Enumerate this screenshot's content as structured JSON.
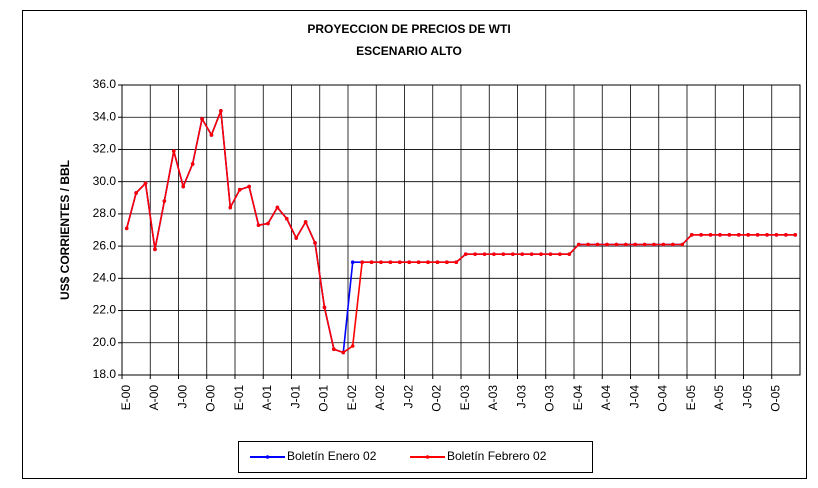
{
  "chart_data": {
    "type": "line",
    "title": "PROYECCION DE PRECIOS DE WTI",
    "subtitle": "ESCENARIO ALTO",
    "y_label": "US$ CORRIENTES / BBL",
    "categories": [
      "E-00",
      null,
      null,
      "A-00",
      null,
      null,
      "J-00",
      null,
      null,
      "O-00",
      null,
      null,
      "E-01",
      null,
      null,
      "A-01",
      null,
      null,
      "J-01",
      null,
      null,
      "O-01",
      null,
      null,
      "E-02",
      null,
      null,
      "A-02",
      null,
      null,
      "J-02",
      null,
      null,
      "O-02",
      null,
      null,
      "E-03",
      null,
      null,
      "A-03",
      null,
      null,
      "J-03",
      null,
      null,
      "O-03",
      null,
      null,
      "E-04",
      null,
      null,
      "A-04",
      null,
      null,
      "J-04",
      null,
      null,
      "O-04",
      null,
      null,
      "E-05",
      null,
      null,
      "A-05",
      null,
      null,
      "J-05",
      null,
      null,
      "O-05",
      null,
      null
    ],
    "series": [
      {
        "name": "Boletín Enero 02",
        "color": "#0000ff",
        "values": [
          27.1,
          29.3,
          29.9,
          25.8,
          28.8,
          31.9,
          29.7,
          31.1,
          33.9,
          32.9,
          34.4,
          28.4,
          29.5,
          29.7,
          27.3,
          27.4,
          28.4,
          27.7,
          26.5,
          27.5,
          26.2,
          22.2,
          19.6,
          19.4,
          25.0,
          25.0,
          25.0,
          25.0,
          25.0,
          25.0,
          25.0,
          25.0,
          25.0,
          25.0,
          25.0,
          25.0,
          25.5,
          25.5,
          25.5,
          25.5,
          25.5,
          25.5,
          25.5,
          25.5,
          25.5,
          25.5,
          25.5,
          25.5,
          26.1,
          26.1,
          26.1,
          26.1,
          26.1,
          26.1,
          26.1,
          26.1,
          26.1,
          26.1,
          26.1,
          26.1,
          26.7,
          26.7,
          26.7,
          26.7,
          26.7,
          26.7,
          26.7,
          26.7,
          26.7,
          26.7,
          26.7,
          26.7
        ]
      },
      {
        "name": "Boletín Febrero 02",
        "color": "#ff0000",
        "values": [
          27.1,
          29.3,
          29.9,
          25.8,
          28.8,
          31.9,
          29.7,
          31.1,
          33.9,
          32.9,
          34.4,
          28.4,
          29.5,
          29.7,
          27.3,
          27.4,
          28.4,
          27.7,
          26.5,
          27.5,
          26.2,
          22.2,
          19.6,
          19.4,
          19.8,
          25.0,
          25.0,
          25.0,
          25.0,
          25.0,
          25.0,
          25.0,
          25.0,
          25.0,
          25.0,
          25.0,
          25.5,
          25.5,
          25.5,
          25.5,
          25.5,
          25.5,
          25.5,
          25.5,
          25.5,
          25.5,
          25.5,
          25.5,
          26.1,
          26.1,
          26.1,
          26.1,
          26.1,
          26.1,
          26.1,
          26.1,
          26.1,
          26.1,
          26.1,
          26.1,
          26.7,
          26.7,
          26.7,
          26.7,
          26.7,
          26.7,
          26.7,
          26.7,
          26.7,
          26.7,
          26.7,
          26.7
        ]
      }
    ],
    "ylim": [
      18,
      36
    ],
    "yticks": [
      {
        "value": 18,
        "label": "18.0"
      },
      {
        "value": 20,
        "label": "20.0"
      },
      {
        "value": 22,
        "label": "22.0"
      },
      {
        "value": 24,
        "label": "24.0"
      },
      {
        "value": 26,
        "label": "26.0"
      },
      {
        "value": 28,
        "label": "28.0"
      },
      {
        "value": 30,
        "label": "30.0"
      },
      {
        "value": 32,
        "label": "32.0"
      },
      {
        "value": 34,
        "label": "34.0"
      },
      {
        "value": 36,
        "label": "36.0"
      }
    ],
    "grid": true,
    "legend": "bottom"
  }
}
